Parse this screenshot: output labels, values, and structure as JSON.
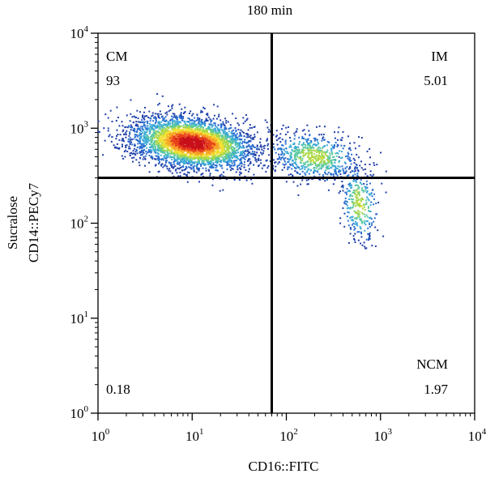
{
  "chart_data": {
    "type": "scatter",
    "subtype": "flow-cytometry-density-dot-plot",
    "title": "180 min",
    "xlabel": "CD16::FITC",
    "ylabel_lines": [
      "Sucralose",
      "CD14::PECy7"
    ],
    "xscale": "log",
    "yscale": "log",
    "xlim": [
      1,
      10000
    ],
    "ylim": [
      1,
      10000
    ],
    "x_ticks": [
      {
        "base": "10",
        "exp": "0",
        "value": 1
      },
      {
        "base": "10",
        "exp": "1",
        "value": 10
      },
      {
        "base": "10",
        "exp": "2",
        "value": 100
      },
      {
        "base": "10",
        "exp": "3",
        "value": 1000
      },
      {
        "base": "10",
        "exp": "4",
        "value": 10000
      }
    ],
    "y_ticks": [
      {
        "base": "10",
        "exp": "0",
        "value": 1
      },
      {
        "base": "10",
        "exp": "1",
        "value": 10
      },
      {
        "base": "10",
        "exp": "2",
        "value": 100
      },
      {
        "base": "10",
        "exp": "3",
        "value": 1000
      },
      {
        "base": "10",
        "exp": "4",
        "value": 10000
      }
    ],
    "gates": {
      "x": 70,
      "y": 300
    },
    "quadrants": [
      {
        "name": "CM",
        "value": "93",
        "position": "top-left"
      },
      {
        "name": "IM",
        "value": "5.01",
        "position": "top-right"
      },
      {
        "name": "",
        "value": "0.18",
        "position": "bottom-left"
      },
      {
        "name": "NCM",
        "value": "1.97",
        "position": "bottom-right"
      }
    ],
    "populations": [
      {
        "center_x": 10,
        "center_y": 700,
        "spread_x_decades": 0.32,
        "spread_y_decades": 0.13,
        "relative_count": 0.74
      },
      {
        "center_x": 200,
        "center_y": 500,
        "spread_x_decades": 0.25,
        "spread_y_decades": 0.12,
        "relative_count": 0.14
      },
      {
        "center_x": 600,
        "center_y": 160,
        "spread_x_decades": 0.1,
        "spread_y_decades": 0.2,
        "relative_count": 0.06
      }
    ],
    "density_colors": [
      "#1f3fa8",
      "#2a6fd0",
      "#3aa9d6",
      "#5cc9a0",
      "#a8d84a",
      "#f2e034",
      "#f7a227",
      "#e8431c",
      "#c8101a"
    ],
    "grid": false,
    "legend": "none"
  }
}
